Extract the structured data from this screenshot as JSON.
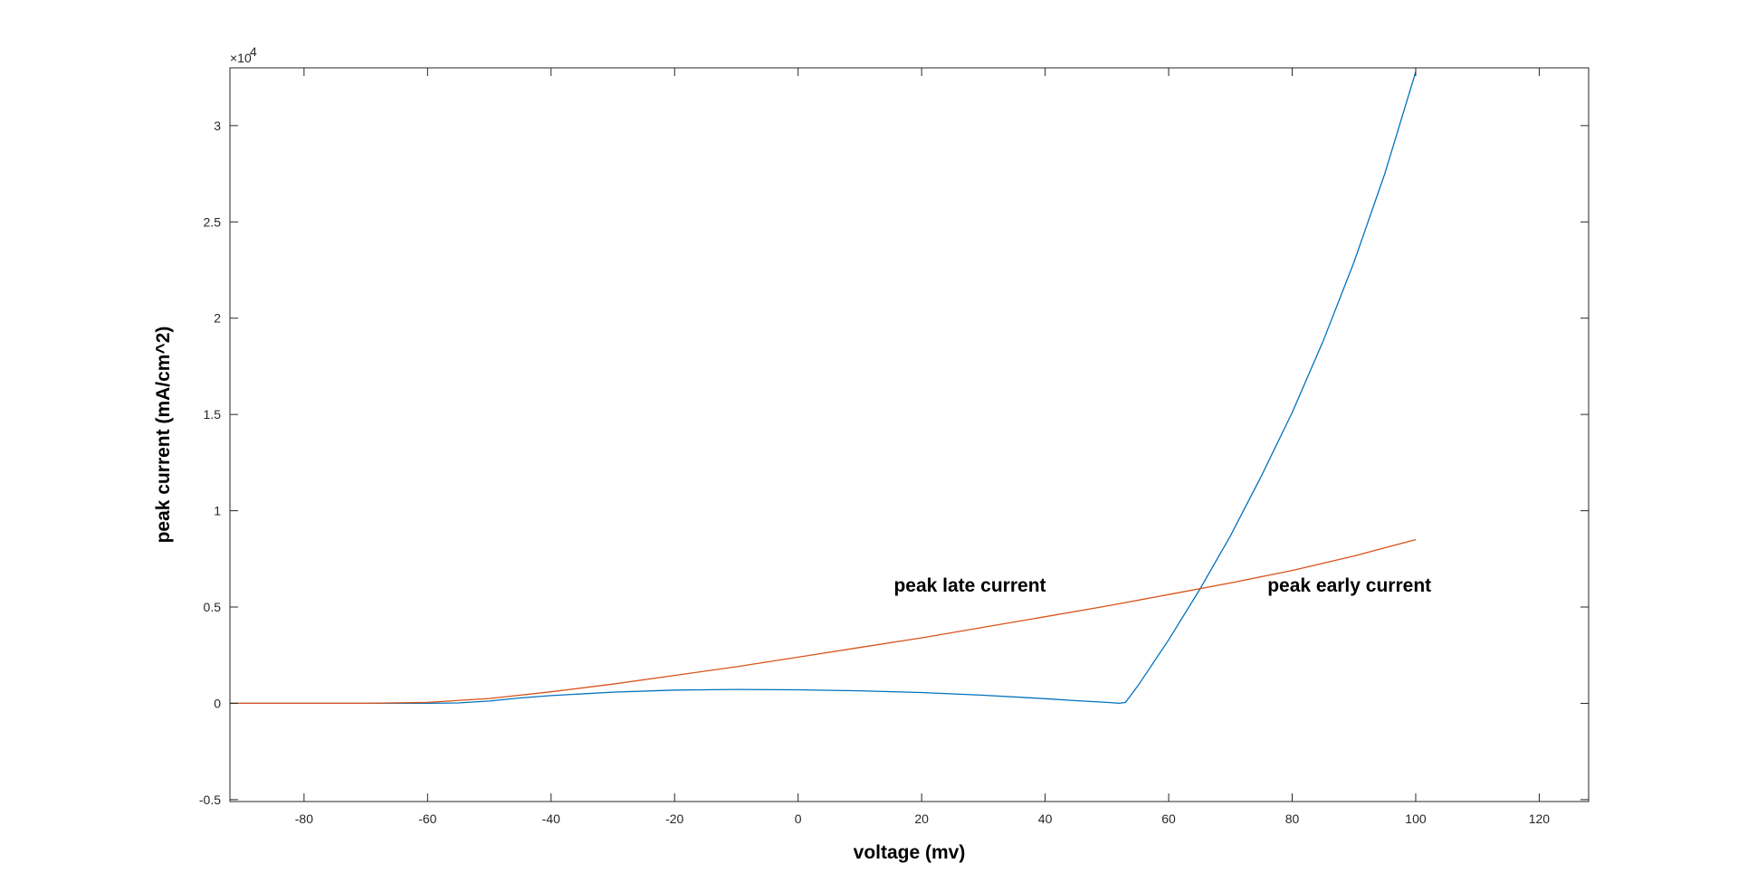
{
  "chart_data": {
    "type": "line",
    "title": "",
    "xlabel": "voltage (mv)",
    "ylabel": "peak current (mA/cm^2)",
    "y_exponent_label": "×10",
    "y_exponent_power": "4",
    "xlim": [
      -92,
      128
    ],
    "ylim": [
      -5100,
      33000
    ],
    "xticks": [
      -80,
      -60,
      -40,
      -20,
      0,
      20,
      40,
      60,
      80,
      100,
      120
    ],
    "xtick_labels": [
      "-80",
      "-60",
      "-40",
      "-20",
      "0",
      "20",
      "40",
      "60",
      "80",
      "100",
      "120"
    ],
    "yticks": [
      -5000,
      0,
      5000,
      10000,
      15000,
      20000,
      25000,
      30000
    ],
    "ytick_labels": [
      "-0.5",
      "0",
      "0.5",
      "1",
      "1.5",
      "2",
      "2.5",
      "3"
    ],
    "grid": false,
    "box": true,
    "annotations": [
      {
        "text": "peak late current",
        "x": 15.5,
        "y": 5800
      },
      {
        "text": "peak early current",
        "x": 76,
        "y": 5800
      }
    ],
    "series": [
      {
        "color": "#0072BD",
        "x": [
          -92,
          -70,
          -60,
          -55,
          -50,
          -45,
          -40,
          -30,
          -20,
          -10,
          0,
          10,
          20,
          30,
          40,
          45,
          50,
          52,
          53,
          55,
          60,
          65,
          70,
          75,
          80,
          85,
          90,
          95,
          100
        ],
        "y": [
          0,
          0,
          0,
          20,
          120,
          280,
          400,
          580,
          690,
          720,
          700,
          650,
          560,
          420,
          240,
          140,
          50,
          0,
          50,
          900,
          3300,
          5900,
          8700,
          11800,
          15100,
          18800,
          22900,
          27500,
          32800
        ]
      },
      {
        "color": "#D95319",
        "x": [
          -92,
          -80,
          -70,
          -60,
          -50,
          -40,
          -30,
          -20,
          -10,
          0,
          10,
          20,
          30,
          40,
          50,
          60,
          70,
          80,
          90,
          100
        ],
        "y": [
          0,
          0,
          0,
          50,
          250,
          600,
          1000,
          1450,
          1900,
          2400,
          2900,
          3400,
          3950,
          4500,
          5050,
          5650,
          6250,
          6900,
          7650,
          8500
        ]
      }
    ]
  }
}
